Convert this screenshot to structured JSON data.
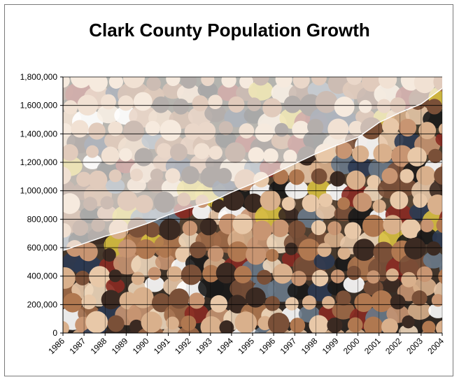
{
  "chart_data": {
    "type": "area",
    "title": "Clark County Population Growth",
    "xlabel": "",
    "ylabel": "",
    "categories": [
      "1986",
      "1987",
      "1988",
      "1989",
      "1990",
      "1991",
      "1992",
      "1993",
      "1994",
      "1995",
      "1996",
      "1997",
      "1998",
      "1999",
      "2000",
      "2001",
      "2002",
      "2003",
      "2004"
    ],
    "values": [
      580000,
      630000,
      680000,
      720000,
      770000,
      830000,
      880000,
      920000,
      990000,
      1050000,
      1120000,
      1190000,
      1260000,
      1320000,
      1375000,
      1480000,
      1550000,
      1610000,
      1720000
    ],
    "ylim": [
      0,
      1800000
    ],
    "yticks": [
      "0",
      "200,000",
      "400,000",
      "600,000",
      "800,000",
      "1,000,000",
      "1,200,000",
      "1,400,000",
      "1,600,000",
      "1,800,000"
    ],
    "ytick_values": [
      0,
      200000,
      400000,
      600000,
      800000,
      1000000,
      1200000,
      1400000,
      1600000,
      1800000
    ],
    "grid": true,
    "legend": "none",
    "fill_style": "crowd photograph texture",
    "colors": {
      "gridline": "#000000",
      "axis": "#000000",
      "overlay_above_line": "#ffffff"
    }
  }
}
